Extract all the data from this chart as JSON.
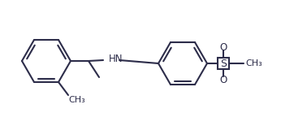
{
  "line_color": "#2d2d4a",
  "bg_color": "#ffffff",
  "line_width": 1.5,
  "font_size_hn": 8.5,
  "font_size_label": 8.0,
  "font_size_o": 8.5,
  "font_size_s": 9.0,
  "hn_label": "HN",
  "o_top": "O",
  "o_bot": "O",
  "s_label": "S",
  "ch3_so2": "CH₃",
  "ch3_methyl": "CH₃"
}
